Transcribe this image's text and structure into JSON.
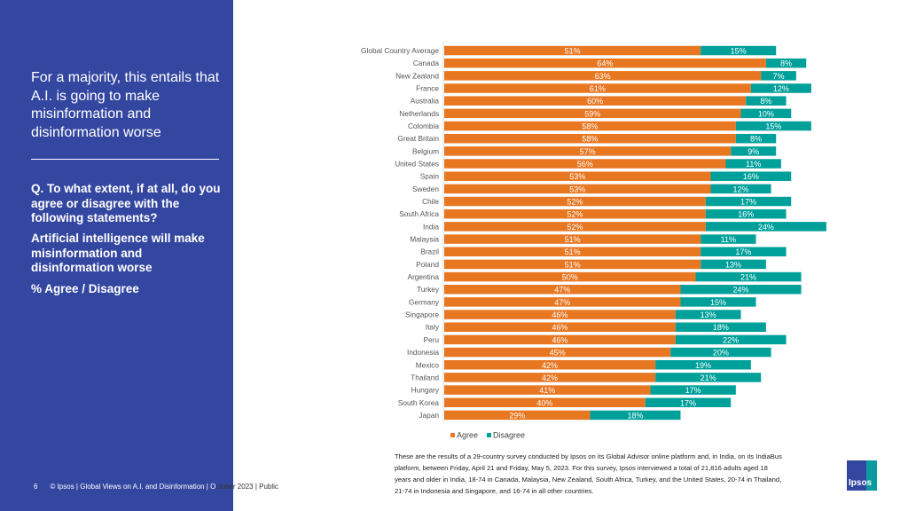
{
  "left_panel": {
    "headline": "For a majority, this entails that A.I. is going to make misinformation and disinformation worse",
    "question": "Q. To what extent, if at all, do you agree or disagree with the following statements?",
    "statement": "Artificial intelligence will make misinformation and disinformation worse",
    "measure": "% Agree / Disagree"
  },
  "footer": {
    "page_number": "6",
    "text_on_blue": "© Ipsos | Global Views on A.I. and Disinformation | O",
    "text_on_white": "ctober 2023 | Public"
  },
  "note": "These are the results of a 29-country survey conducted by Ipsos on its Global Advisor online platform and, in India, on its IndiaBus platform, between Friday, April 21 and Friday, May 5, 2023. For this survey, Ipsos interviewed a total of 21,816 adults aged 18 years and older in India, 18-74 in Canada, Malaysia, New Zealand, South Africa, Turkey, and the United States, 20-74 in Thailand, 21-74 in Indonesia and Singapore, and 16-74 in all other countries.",
  "logo": {
    "text": "Ipsos"
  },
  "colors": {
    "agree": "#e87722",
    "disagree": "#00a09a",
    "panel": "#3447a0"
  },
  "chart_data": {
    "type": "bar",
    "orientation": "horizontal",
    "stacked": true,
    "categories": [
      "Global Country Average",
      "Canada",
      "New Zealand",
      "France",
      "Australia",
      "Netherlands",
      "Colombia",
      "Great Britain",
      "Belgium",
      "United States",
      "Spain",
      "Sweden",
      "Chile",
      "South Africa",
      "India",
      "Malaysia",
      "Brazil",
      "Poland",
      "Argentina",
      "Turkey",
      "Germany",
      "Singapore",
      "Italy",
      "Peru",
      "Indonesia",
      "Mexico",
      "Thailand",
      "Hungary",
      "South Korea",
      "Japan"
    ],
    "series": [
      {
        "name": "Agree",
        "values": [
          51,
          64,
          63,
          61,
          60,
          59,
          58,
          58,
          57,
          56,
          53,
          53,
          52,
          52,
          52,
          51,
          51,
          51,
          50,
          47,
          47,
          46,
          46,
          46,
          45,
          42,
          42,
          41,
          40,
          29
        ]
      },
      {
        "name": "Disagree",
        "values": [
          15,
          8,
          7,
          12,
          8,
          10,
          15,
          8,
          9,
          11,
          16,
          12,
          17,
          16,
          24,
          11,
          17,
          13,
          21,
          24,
          15,
          13,
          18,
          22,
          20,
          19,
          21,
          17,
          17,
          18
        ]
      }
    ],
    "data_label_suffix": "%",
    "xlim": [
      0,
      76
    ],
    "grid": false,
    "legend": "bottom-left"
  }
}
